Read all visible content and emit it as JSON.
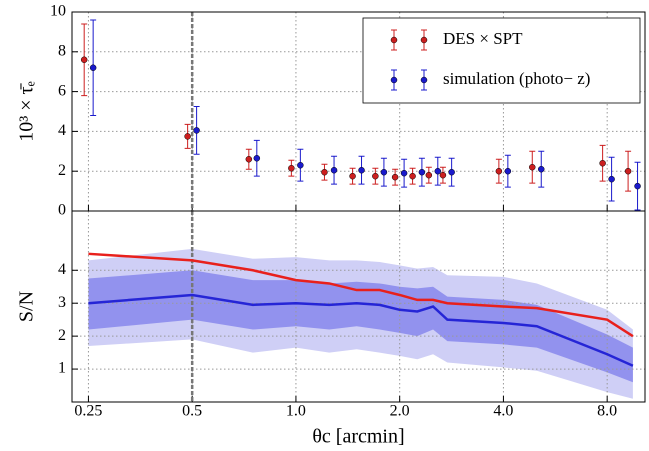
{
  "chart_data": [
    {
      "type": "errorbar",
      "ylabel": "10³ × τ̄ₑ",
      "xscale": "log",
      "xlim": [
        0.224,
        10.3
      ],
      "xticks": [
        0.25,
        0.5,
        1,
        2,
        4,
        8
      ],
      "ylim": [
        0,
        10
      ],
      "yticks": [
        0,
        2,
        4,
        6,
        8,
        10
      ],
      "grid": true,
      "vline": 0.5,
      "legend": "upper right",
      "series": [
        {
          "name": "DES × SPT",
          "color": "#cc1f1f",
          "x": [
            0.243,
            0.485,
            0.73,
            0.97,
            1.21,
            1.46,
            1.7,
            1.94,
            2.18,
            2.43,
            2.67,
            3.88,
            4.85,
            7.76,
            9.2
          ],
          "values": [
            7.6,
            3.75,
            2.6,
            2.15,
            1.95,
            1.75,
            1.75,
            1.7,
            1.75,
            1.8,
            1.8,
            2.0,
            2.2,
            2.4,
            2.0
          ],
          "errors": [
            1.8,
            0.6,
            0.5,
            0.4,
            0.4,
            0.4,
            0.4,
            0.4,
            0.4,
            0.4,
            0.4,
            0.6,
            0.8,
            0.9,
            1.0
          ]
        },
        {
          "name": "simulation (photo− z)",
          "color": "#1a1acc",
          "x": [
            0.258,
            0.515,
            0.77,
            1.03,
            1.29,
            1.55,
            1.8,
            2.06,
            2.32,
            2.58,
            2.83,
            4.12,
            5.15,
            8.24,
            9.8
          ],
          "values": [
            7.2,
            4.05,
            2.65,
            2.3,
            2.05,
            2.05,
            1.95,
            1.9,
            1.95,
            2.0,
            1.95,
            2.0,
            2.1,
            1.6,
            1.25
          ],
          "errors": [
            2.4,
            1.2,
            0.9,
            0.8,
            0.7,
            0.7,
            0.7,
            0.7,
            0.7,
            0.7,
            0.7,
            0.8,
            0.9,
            1.1,
            1.2
          ]
        }
      ]
    },
    {
      "type": "line",
      "xlabel": "θc [arcmin]",
      "ylabel": "S/N",
      "xscale": "log",
      "xlim": [
        0.224,
        10.3
      ],
      "xticks": [
        0.25,
        0.5,
        {
          "value": 1,
          "label": "1.0"
        },
        {
          "value": 2,
          "label": "2.0"
        },
        {
          "value": 4,
          "label": "4.0"
        },
        {
          "value": 8,
          "label": "8.0"
        }
      ],
      "ylim": [
        0,
        5.8
      ],
      "yticks": [
        1,
        2,
        3,
        4
      ],
      "grid": true,
      "vline": 0.5,
      "x": [
        0.25,
        0.5,
        0.75,
        1,
        1.25,
        1.5,
        1.75,
        2,
        2.25,
        2.5,
        2.75,
        4,
        5,
        8,
        9.5
      ],
      "bands": [
        {
          "color": "#cfcff6",
          "lower": [
            1.7,
            1.9,
            1.5,
            1.65,
            1.5,
            1.6,
            1.5,
            1.4,
            1.3,
            1.45,
            1.2,
            1.05,
            0.95,
            0.3,
            0.1
          ],
          "upper": [
            4.3,
            4.65,
            4.35,
            4.4,
            4.3,
            4.3,
            4.25,
            4.15,
            4.05,
            4.1,
            3.85,
            3.8,
            3.6,
            2.8,
            2.2
          ]
        },
        {
          "color": "#9292ee",
          "lower": [
            2.2,
            2.5,
            2.2,
            2.3,
            2.2,
            2.3,
            2.2,
            2.1,
            2.0,
            2.2,
            1.85,
            1.75,
            1.65,
            0.9,
            0.6
          ],
          "upper": [
            3.75,
            4.0,
            3.7,
            3.7,
            3.6,
            3.65,
            3.6,
            3.5,
            3.45,
            3.5,
            3.2,
            3.1,
            2.95,
            2.05,
            1.65
          ]
        }
      ],
      "series": [
        {
          "color": "#e8201c",
          "values": [
            4.5,
            4.3,
            4.0,
            3.7,
            3.6,
            3.4,
            3.4,
            3.25,
            3.1,
            3.1,
            3.0,
            2.9,
            2.85,
            2.5,
            2.0
          ]
        },
        {
          "color": "#2525d6",
          "values": [
            3.0,
            3.25,
            2.95,
            3.0,
            2.95,
            3.0,
            2.95,
            2.8,
            2.75,
            2.9,
            2.5,
            2.4,
            2.3,
            1.45,
            1.1
          ]
        }
      ]
    }
  ]
}
